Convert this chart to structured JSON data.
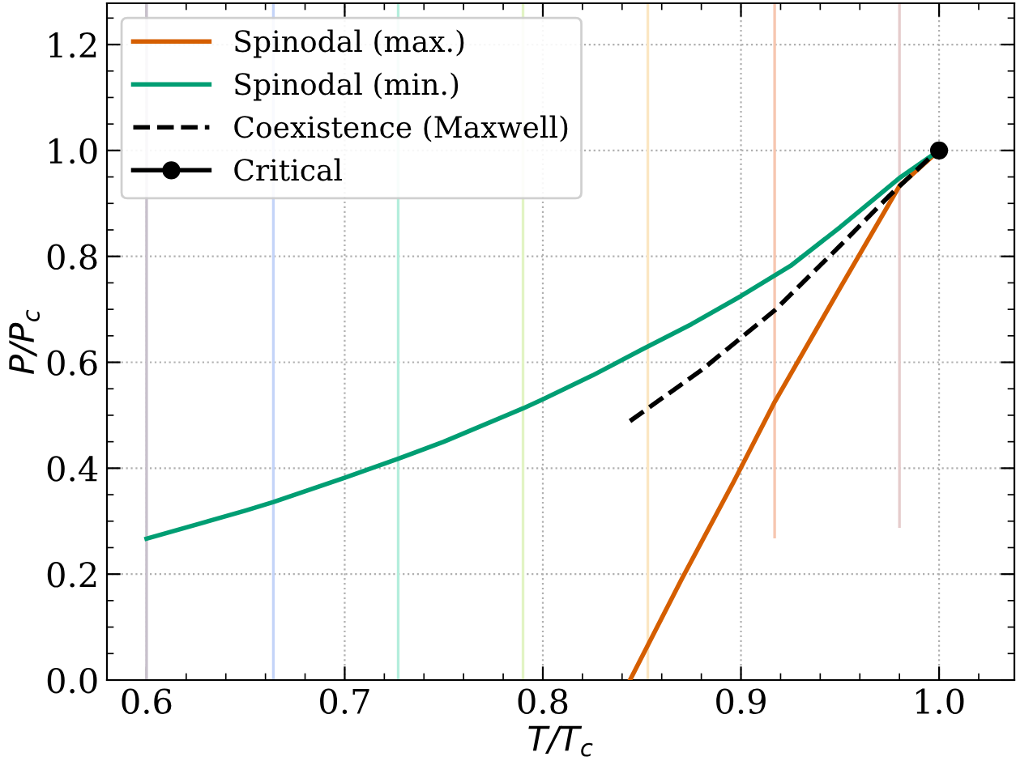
{
  "chart_data": {
    "type": "line",
    "xlabel": "T/T$_{c}$",
    "ylabel": "P/P$_{c}$",
    "xlim": [
      0.58,
      1.038
    ],
    "ylim": [
      0,
      1.278
    ],
    "xticks": [
      {
        "value": 0.6,
        "label": "0.6"
      },
      {
        "value": 0.7,
        "label": "0.7"
      },
      {
        "value": 0.8,
        "label": "0.8"
      },
      {
        "value": 0.9,
        "label": "0.9"
      },
      {
        "value": 1.0,
        "label": "1.0"
      }
    ],
    "yticks": [
      {
        "value": 0,
        "label": "0.0"
      },
      0.2,
      0.4,
      0.6,
      0.8,
      {
        "value": 1.0,
        "label": "1.0"
      },
      1.2
    ],
    "grid": true,
    "legend": "top left",
    "series": [
      {
        "color": "#c8c0cc",
        "x": [
          0.6,
          0.6
        ],
        "values": [
          0,
          1.278
        ]
      },
      {
        "color": "#c4d4f8",
        "x": [
          0.664,
          0.664
        ],
        "values": [
          0,
          1.278
        ]
      },
      {
        "color": "#b4eedc",
        "x": [
          0.727,
          0.727
        ],
        "values": [
          0,
          1.278
        ]
      },
      {
        "color": "#e2f4c4",
        "x": [
          0.79,
          0.79
        ],
        "values": [
          0,
          1.278
        ]
      },
      {
        "color": "#fbe6c2",
        "x": [
          0.853,
          0.853
        ],
        "values": [
          0,
          1.278
        ]
      },
      {
        "color": "#f6c6b0",
        "x": [
          0.917,
          0.917
        ],
        "values": [
          0.27,
          1.278
        ]
      },
      {
        "color": "#e6cccc",
        "x": [
          0.98,
          0.98
        ],
        "values": [
          0.29,
          1.278
        ]
      },
      {
        "name": "Spinodal (max.)",
        "color": "#d55e00",
        "x": [
          0.844,
          0.87,
          0.8964,
          0.917,
          0.95,
          0.98,
          1.0
        ],
        "values": [
          0,
          0.19,
          0.375,
          0.525,
          0.74,
          0.933,
          1.0
        ]
      },
      {
        "name": "Spinodal (min.)",
        "color": "#009e73",
        "x": [
          0.6,
          0.65,
          0.664,
          0.7,
          0.727,
          0.75,
          0.79,
          0.8,
          0.825,
          0.85,
          0.875,
          0.9,
          0.925,
          0.95,
          0.98,
          1.0
        ],
        "values": [
          0.267,
          0.32,
          0.336,
          0.382,
          0.418,
          0.45,
          0.513,
          0.53,
          0.575,
          0.624,
          0.672,
          0.725,
          0.782,
          0.855,
          0.948,
          1.0
        ]
      },
      {
        "name": "Coexistence (Maxwell)",
        "color": "#000000",
        "line_style": "dashed",
        "x": [
          0.844,
          0.88,
          0.917,
          0.95,
          0.975,
          0.995
        ],
        "values": [
          0.489,
          0.585,
          0.698,
          0.82,
          0.915,
          0.985
        ]
      },
      {
        "name": "Critical",
        "color": "#000000",
        "marker": "circle",
        "x": [
          1.0
        ],
        "values": [
          1.0
        ]
      }
    ]
  }
}
